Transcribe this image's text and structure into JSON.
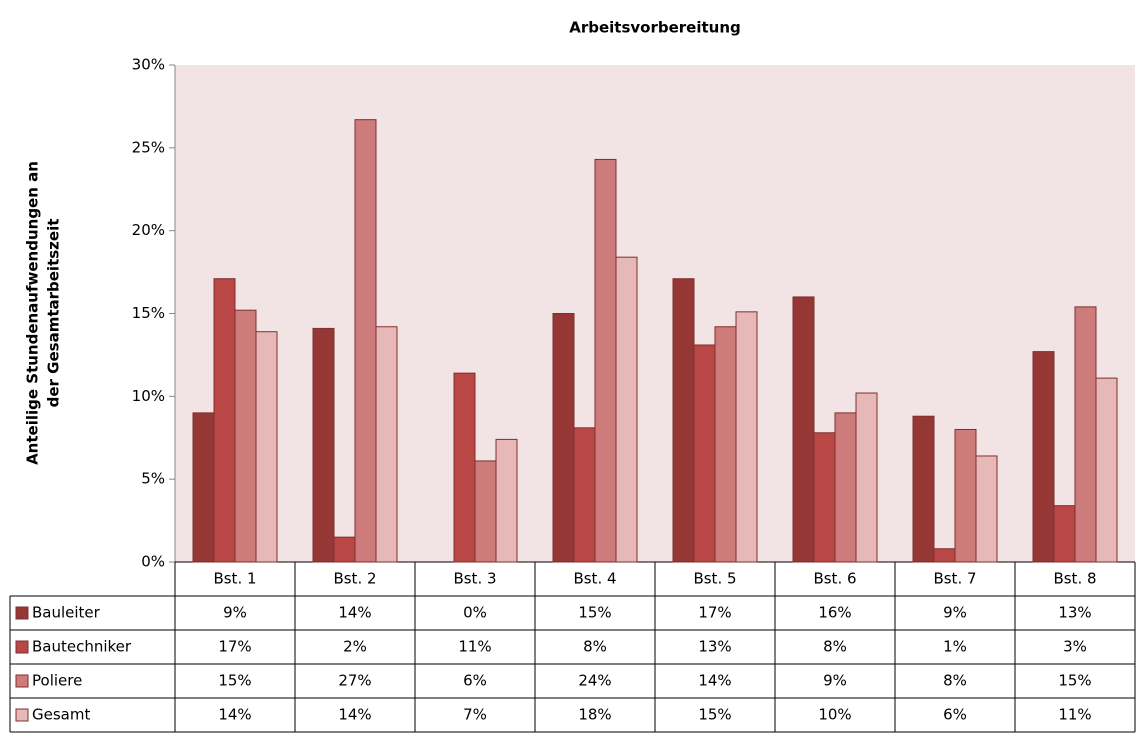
{
  "chart_data": {
    "type": "bar",
    "title": "Arbeitsvorbereitung",
    "y_label": [
      "Anteilige Stundenaufwendungen an",
      "der Gesamtarbeitszeit"
    ],
    "categories": [
      "Bst. 1",
      "Bst. 2",
      "Bst. 3",
      "Bst. 4",
      "Bst. 5",
      "Bst. 6",
      "Bst. 7",
      "Bst. 8"
    ],
    "series": [
      {
        "name": "Bauleiter",
        "color": "#953735",
        "values": [
          9.0,
          14.1,
          0,
          15.0,
          17.1,
          16.0,
          8.8,
          12.7
        ],
        "value_labels": [
          "9%",
          "14%",
          "0%",
          "15%",
          "17%",
          "16%",
          "9%",
          "13%"
        ]
      },
      {
        "name": "Bautechniker",
        "color": "#b94746",
        "values": [
          17.1,
          1.5,
          11.4,
          8.1,
          13.1,
          7.8,
          0.8,
          3.4
        ],
        "value_labels": [
          "17%",
          "2%",
          "11%",
          "8%",
          "13%",
          "8%",
          "1%",
          "3%"
        ]
      },
      {
        "name": "Poliere",
        "color": "#cd7b7b",
        "values": [
          15.2,
          26.7,
          6.1,
          24.3,
          14.2,
          9.0,
          8.0,
          15.4
        ],
        "value_labels": [
          "15%",
          "27%",
          "6%",
          "24%",
          "14%",
          "9%",
          "8%",
          "15%"
        ]
      },
      {
        "name": "Gesamt",
        "color": "#e6b9b8",
        "values": [
          13.9,
          14.2,
          7.4,
          18.4,
          15.1,
          10.2,
          6.4,
          11.1
        ],
        "value_labels": [
          "14%",
          "14%",
          "7%",
          "18%",
          "15%",
          "10%",
          "6%",
          "11%"
        ]
      }
    ],
    "ylim": [
      0,
      30
    ],
    "yticks": [
      {
        "value": 0,
        "label": "0%"
      },
      {
        "value": 5,
        "label": "5%"
      },
      {
        "value": 10,
        "label": "10%"
      },
      {
        "value": 15,
        "label": "15%"
      },
      {
        "value": 20,
        "label": "20%"
      },
      {
        "value": 25,
        "label": "25%"
      },
      {
        "value": 30,
        "label": "30%"
      }
    ],
    "grid": false
  }
}
